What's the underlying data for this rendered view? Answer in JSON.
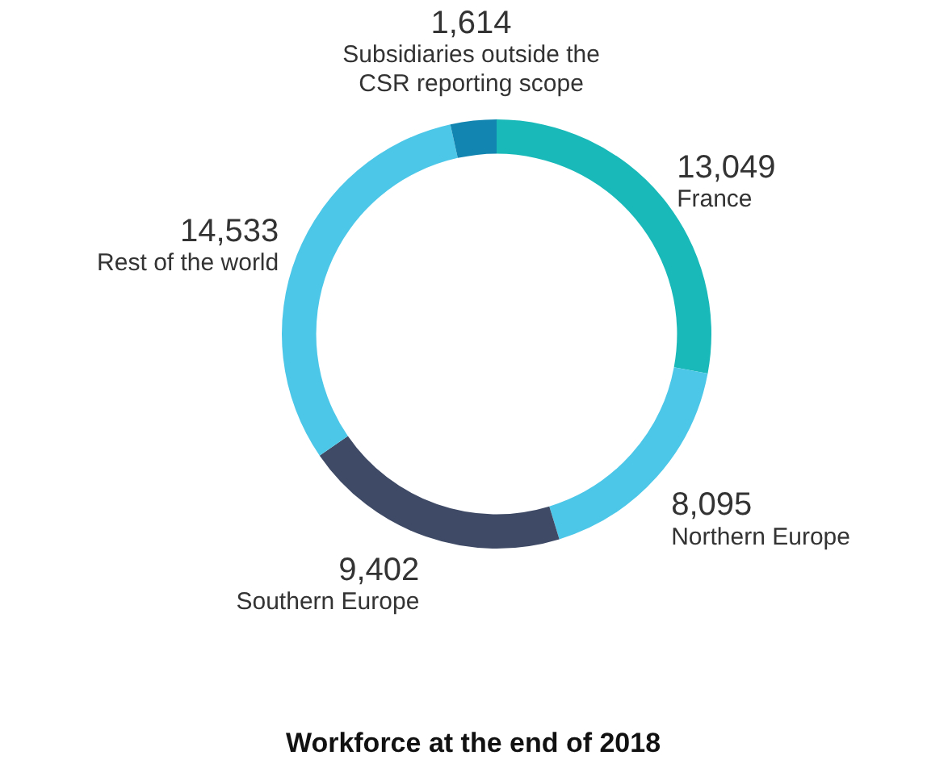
{
  "chart_data": {
    "type": "donut",
    "title": "Workforce at the end of 2018",
    "categories": [
      "France",
      "Northern Europe",
      "Southern Europe",
      "Rest of the world",
      "Subsidiaries outside the CSR reporting scope"
    ],
    "values": [
      13049,
      8095,
      9402,
      14533,
      1614
    ],
    "colors": [
      "#19b9b9",
      "#4dc7e8",
      "#3e4a66",
      "#4dc7e8",
      "#1286b1"
    ],
    "value_labels": [
      "13,049",
      "8,095",
      "9,402",
      "14,533",
      "1,614"
    ]
  }
}
